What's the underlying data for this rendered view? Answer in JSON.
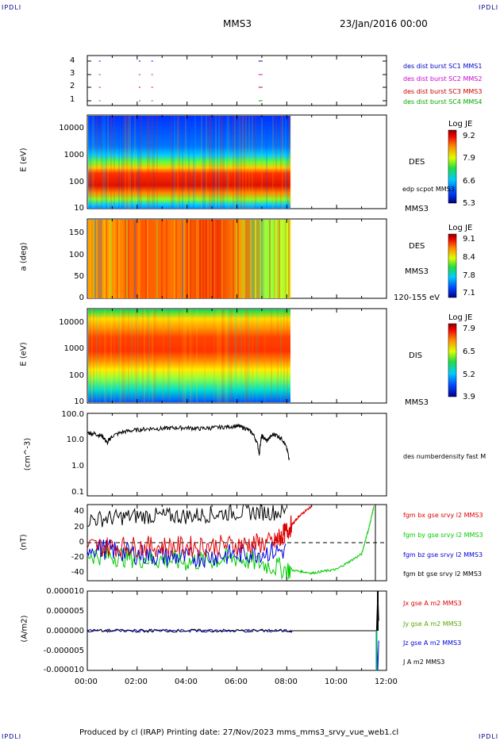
{
  "header": {
    "corner_left": "IPDLI",
    "corner_right": "IPDLI",
    "spacecraft": "MMS3",
    "date": "23/Jan/2016 00:00"
  },
  "footer": {
    "text": "Produced by cl (IRAP)   Printing date: 27/Nov/2023   mms_mms3_srvy_vue_web1.cl",
    "corner_left": "IPDLI",
    "corner_right": "IPDLI"
  },
  "panels": {
    "p1": {
      "legend": [
        "des dist burst SC1 MMS1",
        "des dist burst SC2 MMS2",
        "des dist burst SC3 MMS3",
        "des dist burst SC4 MMS4"
      ],
      "legend_colors": [
        "#0000cc",
        "#cc00cc",
        "#cc0000",
        "#00aa00"
      ],
      "ticks": [
        "4",
        "3",
        "2",
        "1"
      ]
    },
    "p2": {
      "ylabel": "E (eV)",
      "ticks": [
        "10000",
        "1000",
        "100",
        "10"
      ],
      "species": "DES",
      "sat": "MMS3",
      "overlay": "edp scpot MMS3",
      "colorbar": {
        "title": "Log JE",
        "labels": [
          "9.2",
          "7.9",
          "6.6",
          "5.3"
        ]
      }
    },
    "p3": {
      "ylabel": "a (deg)",
      "ticks": [
        "150",
        "100",
        "50",
        "0"
      ],
      "species": "DES",
      "sat": "MMS3",
      "energy": "120-155 eV",
      "colorbar": {
        "title": "Log JE",
        "labels": [
          "9.1",
          "8.4",
          "7.8",
          "7.1"
        ]
      }
    },
    "p4": {
      "ylabel": "E (eV)",
      "ticks": [
        "10000",
        "1000",
        "100",
        "10"
      ],
      "species": "DIS",
      "sat": "MMS3",
      "colorbar": {
        "title": "Log JE",
        "labels": [
          "7.9",
          "6.5",
          "5.2",
          "3.9"
        ]
      }
    },
    "p5": {
      "ylabel": "(cm^-3)",
      "ticks": [
        "100.0",
        "10.0",
        "1.0",
        "0.1"
      ],
      "legend": "des numberdensity fast M"
    },
    "p6": {
      "ylabel": "(nT)",
      "ticks": [
        "40",
        "20",
        "0",
        "-20",
        "-40"
      ],
      "legend": [
        "fgm bx gse srvy l2 MMS3",
        "fgm by gse srvy l2 MMS3",
        "fgm bz gse srvy l2 MMS3",
        "fgm bt gse srvy l2 MMS3"
      ],
      "legend_colors": [
        "#dd0000",
        "#00cc00",
        "#0000dd",
        "#000000"
      ]
    },
    "p7": {
      "ylabel": "(A/m2)",
      "ticks": [
        "0.000010",
        "0.000005",
        "0.000000",
        "-0.000005",
        "-0.000010"
      ],
      "legend": [
        "Jx gse A m2 MMS3",
        "Jy gse A m2 MMS3",
        "Jz gse A m2 MMS3",
        "J A m2 MMS3"
      ],
      "legend_colors": [
        "#dd0000",
        "#55aa00",
        "#0000dd",
        "#000000"
      ]
    }
  },
  "x_ticks": [
    "00:00",
    "02:00",
    "04:00",
    "06:00",
    "08:00",
    "10:00",
    "12:00"
  ],
  "chart_data": [
    {
      "type": "scatter",
      "title": "",
      "xlabel": "",
      "ylabel": "",
      "series": [
        {
          "name": "des dist burst SC1 MMS1",
          "color": "#0000cc",
          "y": 4
        },
        {
          "name": "des dist burst SC2 MMS2",
          "color": "#cc00cc",
          "y": 3
        },
        {
          "name": "des dist burst SC3 MMS3",
          "color": "#cc0000",
          "y": 2
        },
        {
          "name": "des dist burst SC4 MMS4",
          "color": "#00aa00",
          "y": 1
        }
      ],
      "x_hours": [
        0.5,
        2.1,
        2.6,
        6.9
      ]
    },
    {
      "type": "heatmap",
      "ylabel": "E (eV)",
      "yscale": "log",
      "ylim": [
        10,
        30000
      ],
      "xlim": [
        "00:00",
        "12:00"
      ],
      "data_end": "08:10",
      "colorbar": [
        5.3,
        9.2
      ],
      "label": "DES"
    },
    {
      "type": "heatmap",
      "ylabel": "a (deg)",
      "ylim": [
        0,
        180
      ],
      "xlim": [
        "00:00",
        "12:00"
      ],
      "data_end": "08:10",
      "colorbar": [
        7.1,
        9.1
      ],
      "label": "DES"
    },
    {
      "type": "heatmap",
      "ylabel": "E (eV)",
      "yscale": "log",
      "ylim": [
        10,
        30000
      ],
      "xlim": [
        "00:00",
        "12:00"
      ],
      "data_end": "08:10",
      "colorbar": [
        3.9,
        7.9
      ],
      "label": "DIS"
    },
    {
      "type": "line",
      "ylabel": "(cm^-3)",
      "yscale": "log",
      "ylim": [
        0.1,
        100
      ],
      "series": [
        {
          "name": "des numberdensity fast M",
          "x": [
            0.0,
            0.3,
            0.6,
            0.8,
            1.0,
            1.5,
            2.0,
            2.5,
            3.0,
            3.5,
            4.0,
            4.5,
            5.0,
            5.5,
            6.0,
            6.3,
            6.6,
            6.9,
            7.0,
            7.2,
            7.5,
            7.8,
            8.0,
            8.1
          ],
          "y": [
            20,
            18,
            15,
            8,
            15,
            22,
            25,
            28,
            28,
            30,
            30,
            28,
            30,
            32,
            35,
            30,
            20,
            3,
            15,
            10,
            18,
            12,
            5,
            2
          ]
        }
      ]
    },
    {
      "type": "line",
      "ylabel": "(nT)",
      "ylim": [
        -50,
        50
      ],
      "series": [
        {
          "name": "fgm bx gse srvy l2 MMS3",
          "x": [
            0,
            2,
            4,
            6,
            7.5,
            8.0,
            8.5,
            9.0
          ],
          "y": [
            -5,
            -5,
            -5,
            -3,
            0,
            15,
            35,
            48
          ]
        },
        {
          "name": "fgm by gse srvy l2 MMS3",
          "x": [
            0,
            2,
            4,
            6,
            8,
            9,
            10,
            11,
            11.3,
            11.5
          ],
          "y": [
            -15,
            -20,
            -25,
            -20,
            -35,
            -40,
            -35,
            -15,
            20,
            48
          ]
        },
        {
          "name": "fgm bz gse srvy l2 MMS3",
          "x": [
            0,
            2,
            4,
            6,
            8
          ],
          "y": [
            -5,
            -15,
            -20,
            -15,
            -10
          ]
        },
        {
          "name": "fgm bt gse srvy l2 MMS3",
          "x": [
            0,
            2,
            4,
            6,
            8
          ],
          "y": [
            30,
            35,
            35,
            40,
            40
          ]
        }
      ]
    },
    {
      "type": "line",
      "ylabel": "(A/m2)",
      "ylim": [
        -1e-05,
        1e-05
      ],
      "series": [
        {
          "name": "J A m2 MMS3",
          "x": [
            0,
            8.1,
            11.6,
            11.65,
            11.7
          ],
          "y": [
            0,
            0,
            0,
            1e-05,
            0
          ]
        },
        {
          "name": "Jz gse A m2 MMS3",
          "x": [
            0,
            8.1,
            11.6,
            11.65,
            11.7
          ],
          "y": [
            0,
            0,
            0,
            -1e-05,
            0
          ]
        }
      ]
    }
  ]
}
